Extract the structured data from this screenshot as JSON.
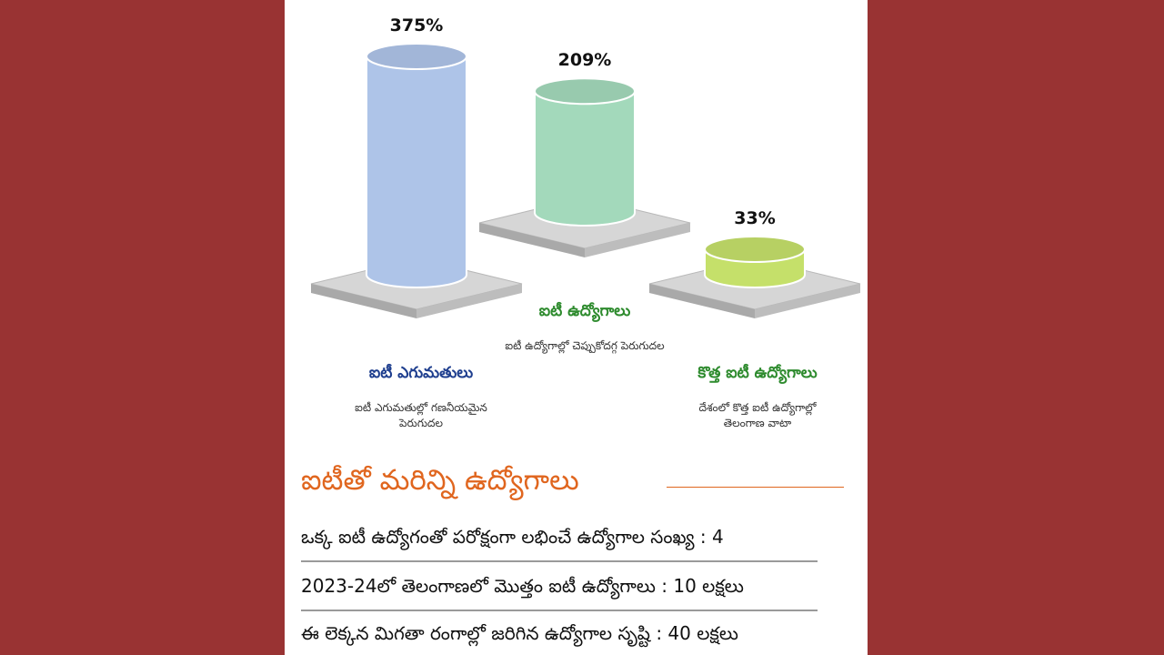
{
  "colors": {
    "background": "#993333",
    "panel": "#ffffff",
    "bar_blue": "#aec4e8",
    "bar_green": "#a3d9bb",
    "bar_lime": "#c5e06a",
    "title_blue": "#1f3f8f",
    "title_green": "#2e8b2e",
    "heading_orange": "#e0661f"
  },
  "chart_data": {
    "type": "bar",
    "categories": [
      "ఐటీ ఎగుమతులు",
      "ఐటీ ఉద్యోగాలు",
      "కొత్త ఐటీ ఉద్యోగాలు"
    ],
    "values": [
      375,
      209,
      33
    ],
    "value_labels": [
      "375%",
      "209%",
      "33%"
    ],
    "descriptions": [
      "ఐటీ ఎగుమతుల్లో గణనీయమైన పెరుగుదల",
      "ఐటీ ఉద్యోగాల్లో చెప్పుకోదగ్గ పెరుగుదల",
      "దేశంలో కొత్త ఐటీ ఉద్యోగాల్లో తెలంగాణ వాటా"
    ],
    "bar_colors": [
      "#aec4e8",
      "#a3d9bb",
      "#c5e06a"
    ],
    "title_colors": [
      "#1f3f8f",
      "#2e8b2e",
      "#2e8b2e"
    ],
    "grid": false
  },
  "section": {
    "heading": "ఐటీతో మరిన్ని ఉద్యోగాలు",
    "facts": [
      "ఒక్క ఐటీ ఉద్యోగంతో పరోక్షంగా లభించే ఉద్యోగాల సంఖ్య : 4",
      "2023-24లో తెలంగాణలో మొత్తం ఐటీ ఉద్యోగాలు : 10 లక్షలు",
      "ఈ లెక్కన మిగతా రంగాల్లో జరిగిన ఉద్యోగాల సృష్టి : 40 లక్షలు"
    ]
  }
}
